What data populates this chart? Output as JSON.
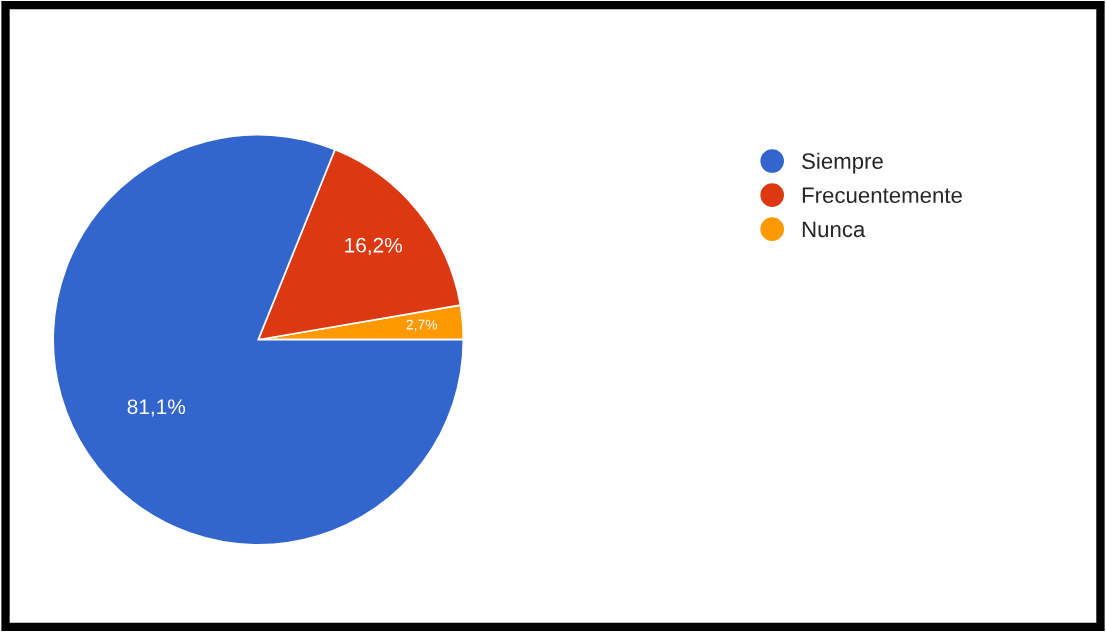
{
  "chart_data": {
    "type": "pie",
    "categories": [
      "Siempre",
      "Frecuentemente",
      "Nunca"
    ],
    "values": [
      81.1,
      16.2,
      2.7
    ],
    "colors": [
      "#3366cc",
      "#dc3912",
      "#ff9900"
    ],
    "value_labels": [
      "81,1%",
      "16,2%",
      "2,7%"
    ],
    "legend": "right"
  }
}
